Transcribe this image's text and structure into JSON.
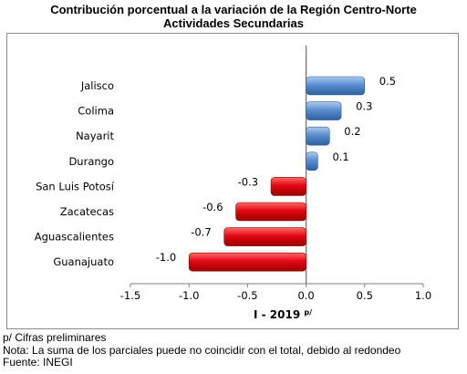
{
  "chart_data": {
    "type": "bar",
    "orientation": "horizontal",
    "title": "Contribución porcentual a la variación de la Región Centro-Norte",
    "subtitle": "Actividades Secundarias",
    "xlabel": "I - 2019",
    "xlabel_superscript": "p/",
    "ylabel": "",
    "xlim": [
      -1.5,
      1.0
    ],
    "xticks": [
      "-1.5",
      "-1.0",
      "-0.5",
      "0.0",
      "0.5",
      "1.0"
    ],
    "xtick_values": [
      -1.5,
      -1.0,
      -0.5,
      0.0,
      0.5,
      1.0
    ],
    "categories": [
      "Jalisco",
      "Colima",
      "Nayarit",
      "Durango",
      "San Luis Potosí",
      "Zacatecas",
      "Aguascalientes",
      "Guanajuato"
    ],
    "values": [
      0.5,
      0.3,
      0.2,
      0.1,
      -0.3,
      -0.6,
      -0.7,
      -1.0
    ],
    "value_labels": [
      "0.5",
      "0.3",
      "0.2",
      "0.1",
      "-0.3",
      "-0.6",
      "-0.7",
      "-1.0"
    ],
    "grid": false,
    "legend": "none",
    "colors": {
      "positive": "#4f81bd",
      "negative": "#e30613"
    }
  },
  "notes": {
    "line1": "p/ Cifras preliminares",
    "line2": "Nota: La suma de los parciales puede no coincidir con el total, debido al redondeo",
    "line3": "Fuente: INEGI"
  }
}
